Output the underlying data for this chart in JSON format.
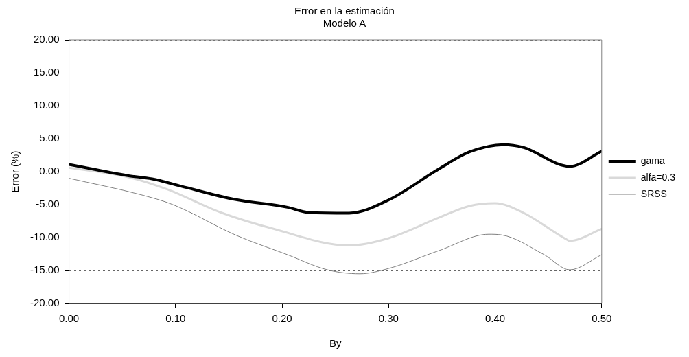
{
  "chart_data": {
    "type": "line",
    "title": "Error en la estimación",
    "subtitle": "Modelo A",
    "xlabel": "By",
    "ylabel": "Error (%)",
    "xlim": [
      0,
      0.5
    ],
    "xticks": [
      {
        "value": 0,
        "label": "0.00"
      },
      {
        "value": 0.1,
        "label": "0.10"
      },
      {
        "value": 0.2,
        "label": "0.20"
      },
      {
        "value": 0.3,
        "label": "0.30"
      },
      {
        "value": 0.4,
        "label": "0.40"
      },
      {
        "value": 0.5,
        "label": "0.50"
      }
    ],
    "ylim": [
      -20,
      20
    ],
    "yticks": [
      {
        "value": -20,
        "label": "-20.00"
      },
      {
        "value": -15,
        "label": "-15.00"
      },
      {
        "value": -10,
        "label": "-10.00"
      },
      {
        "value": -5,
        "label": "-5.00"
      },
      {
        "value": 0,
        "label": "0.00"
      },
      {
        "value": 5,
        "label": "5.00"
      },
      {
        "value": 10,
        "label": "10.00"
      },
      {
        "value": 15,
        "label": "15.00"
      },
      {
        "value": 20,
        "label": "20.00"
      }
    ],
    "grid": "y",
    "legend": "right",
    "marker": "none",
    "line_style": "solid",
    "series": [
      {
        "name": "gama",
        "color": "#000000",
        "x": [
          0,
          0.055,
          0.078,
          0.105,
          0.155,
          0.205,
          0.225,
          0.263,
          0.3,
          0.347,
          0.376,
          0.408,
          0.426,
          0.47,
          0.5
        ],
        "values": [
          1.1,
          -0.6,
          -1.1,
          -2.2,
          -4.2,
          -5.4,
          -6.2,
          -6.3,
          -4.3,
          0.4,
          3.0,
          4.1,
          3.7,
          0.8,
          3.1
        ]
      },
      {
        "name": "alfa=0.3",
        "color": "#d9d9d9",
        "x": [
          0,
          0.055,
          0.0925,
          0.1425,
          0.1925,
          0.2625,
          0.3,
          0.347,
          0.376,
          0.4,
          0.426,
          0.465,
          0.47,
          0.5
        ],
        "values": [
          0.6,
          -0.8,
          -2.7,
          -6.2,
          -8.7,
          -11.2,
          -10.1,
          -7.0,
          -5.2,
          -4.8,
          -6.2,
          -10.1,
          -10.5,
          -8.7
        ]
      },
      {
        "name": "SRSS",
        "color": "#808080",
        "x": [
          0,
          0.0675,
          0.0975,
          0.1575,
          0.205,
          0.2425,
          0.273,
          0.3,
          0.347,
          0.394,
          0.406,
          0.446,
          0.47,
          0.5
        ],
        "values": [
          -1.0,
          -3.5,
          -5.0,
          -9.7,
          -12.6,
          -14.9,
          -15.5,
          -14.7,
          -12.0,
          -9.5,
          -9.6,
          -12.6,
          -14.9,
          -12.6
        ]
      }
    ]
  }
}
